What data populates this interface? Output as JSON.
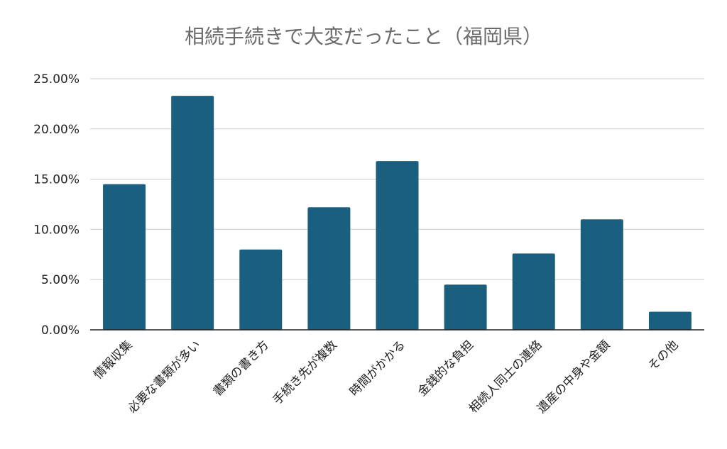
{
  "chart_data": {
    "type": "bar",
    "title": "相続手続きで大変だったこと（福岡県）",
    "xlabel": "",
    "ylabel": "",
    "categories": [
      "情報収集",
      "必要な書類が多い",
      "書類の書き方",
      "手続き先が複数",
      "時間がかかる",
      "金銭的な負担",
      "相続人同士の連絡",
      "遺産の中身や金額",
      "その他"
    ],
    "values": [
      14.5,
      23.3,
      8.0,
      12.2,
      16.8,
      4.5,
      7.6,
      11.0,
      1.8
    ],
    "y_tick_labels": [
      "0.00%",
      "5.00%",
      "10.00%",
      "15.00%",
      "20.00%",
      "25.00%"
    ],
    "ylim": [
      0,
      25
    ],
    "grid": true,
    "legend": "none",
    "colors": {
      "bar": "#1a5f7f",
      "grid": "#cccccc",
      "axis": "#222222",
      "label": "#222222",
      "title": "#6b6b6b"
    }
  }
}
